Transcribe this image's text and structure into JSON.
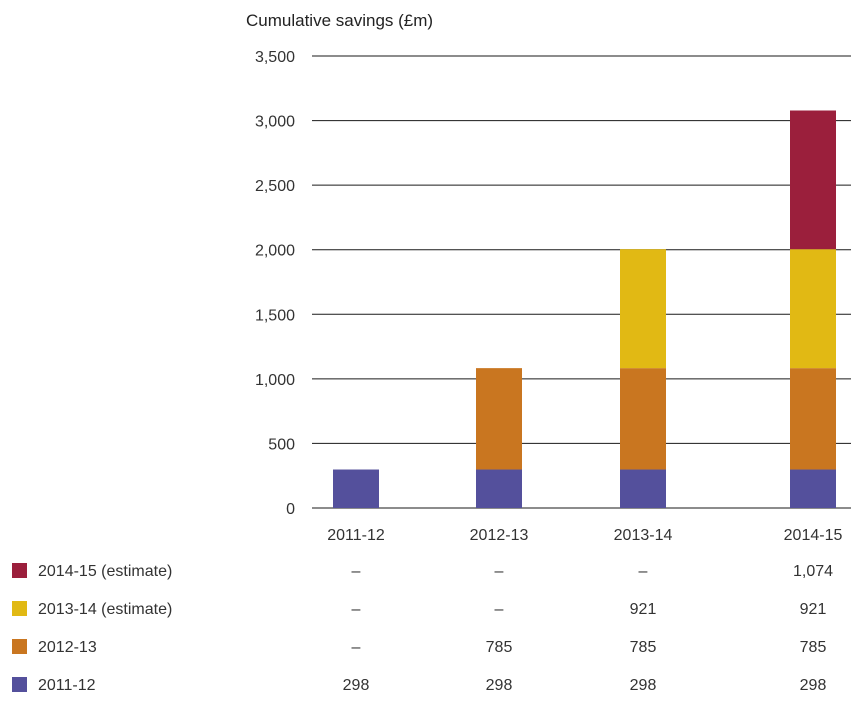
{
  "chart_data": {
    "type": "bar",
    "stacked": true,
    "title": "",
    "ylabel": "Cumulative savings (£m)",
    "xlabel": "",
    "ylim": [
      0,
      3500
    ],
    "yticks": [
      0,
      500,
      1000,
      1500,
      2000,
      2500,
      3000,
      3500
    ],
    "ytick_labels": [
      "0",
      "500",
      "1,000",
      "1,500",
      "2,000",
      "2,500",
      "3,000",
      "3,500"
    ],
    "grid": true,
    "categories": [
      "2011-12",
      "2012-13",
      "2013-14",
      "2014-15"
    ],
    "series": [
      {
        "name": "2014-15 (estimate)",
        "color": "#9b1f3c",
        "values": [
          0,
          0,
          0,
          1074
        ],
        "labels": [
          "–",
          "–",
          "–",
          "1,074"
        ]
      },
      {
        "name": "2013-14 (estimate)",
        "color": "#e1b914",
        "values": [
          0,
          0,
          921,
          921
        ],
        "labels": [
          "–",
          "–",
          "921",
          "921"
        ]
      },
      {
        "name": "2012-13",
        "color": "#c97620",
        "values": [
          0,
          785,
          785,
          785
        ],
        "labels": [
          "–",
          "785",
          "785",
          "785"
        ]
      },
      {
        "name": "2011-12",
        "color": "#54509c",
        "values": [
          298,
          298,
          298,
          298
        ],
        "labels": [
          "298",
          "298",
          "298",
          "298"
        ]
      }
    ],
    "legend": "bottom-left table"
  }
}
